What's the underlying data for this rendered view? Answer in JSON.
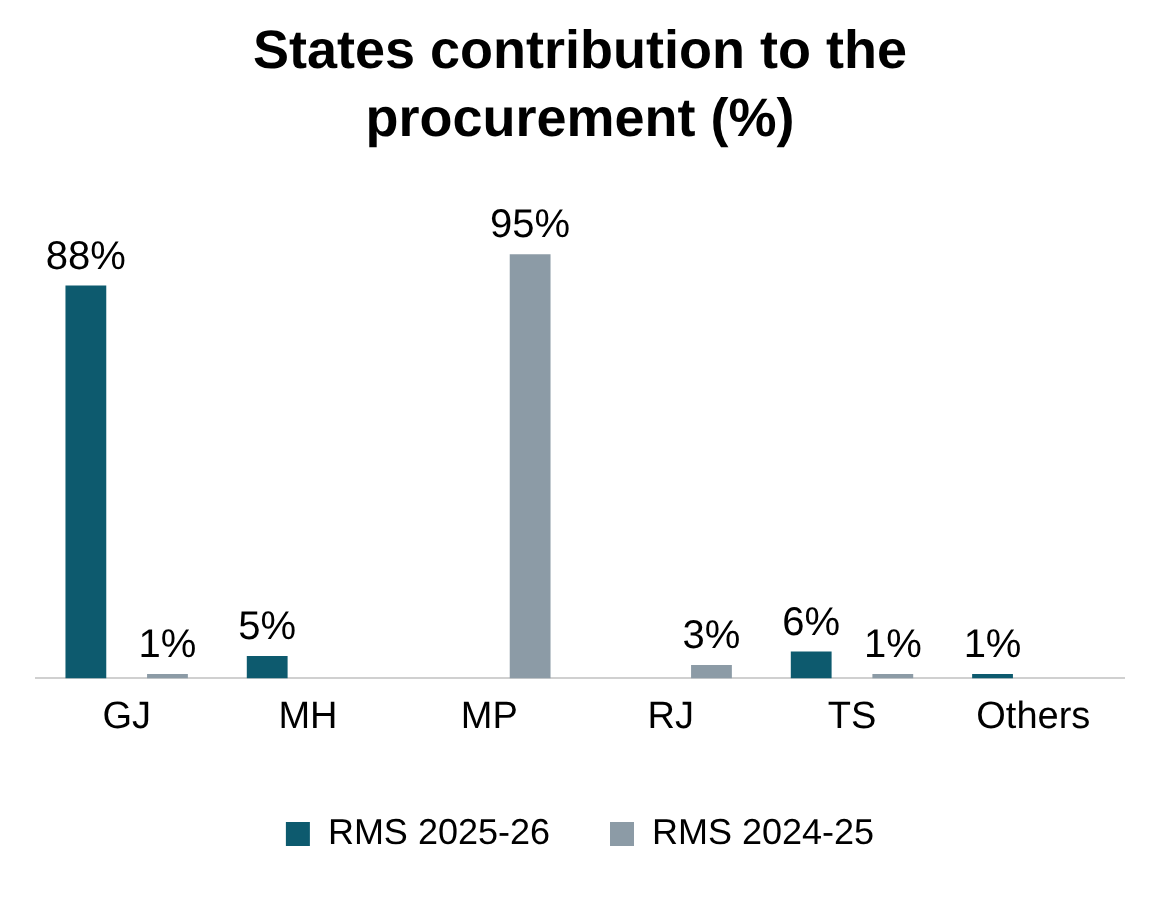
{
  "chart_data": {
    "type": "bar",
    "title": "States contribution to the procurement (%)",
    "categories": [
      "GJ",
      "MH",
      "MP",
      "RJ",
      "TS",
      "Others"
    ],
    "series": [
      {
        "name": "RMS 2025-26",
        "color": "#0d5a6e",
        "values": [
          88,
          5,
          null,
          null,
          6,
          1
        ],
        "value_labels": [
          "88%",
          "5%",
          null,
          null,
          "6%",
          "1%"
        ]
      },
      {
        "name": "RMS 2024-25",
        "color": "#8c9ba6",
        "values": [
          1,
          null,
          95,
          3,
          1,
          null
        ],
        "value_labels": [
          "1%",
          null,
          "95%",
          "3%",
          "1%",
          null
        ]
      }
    ],
    "grid": false,
    "legend": "bottom"
  }
}
